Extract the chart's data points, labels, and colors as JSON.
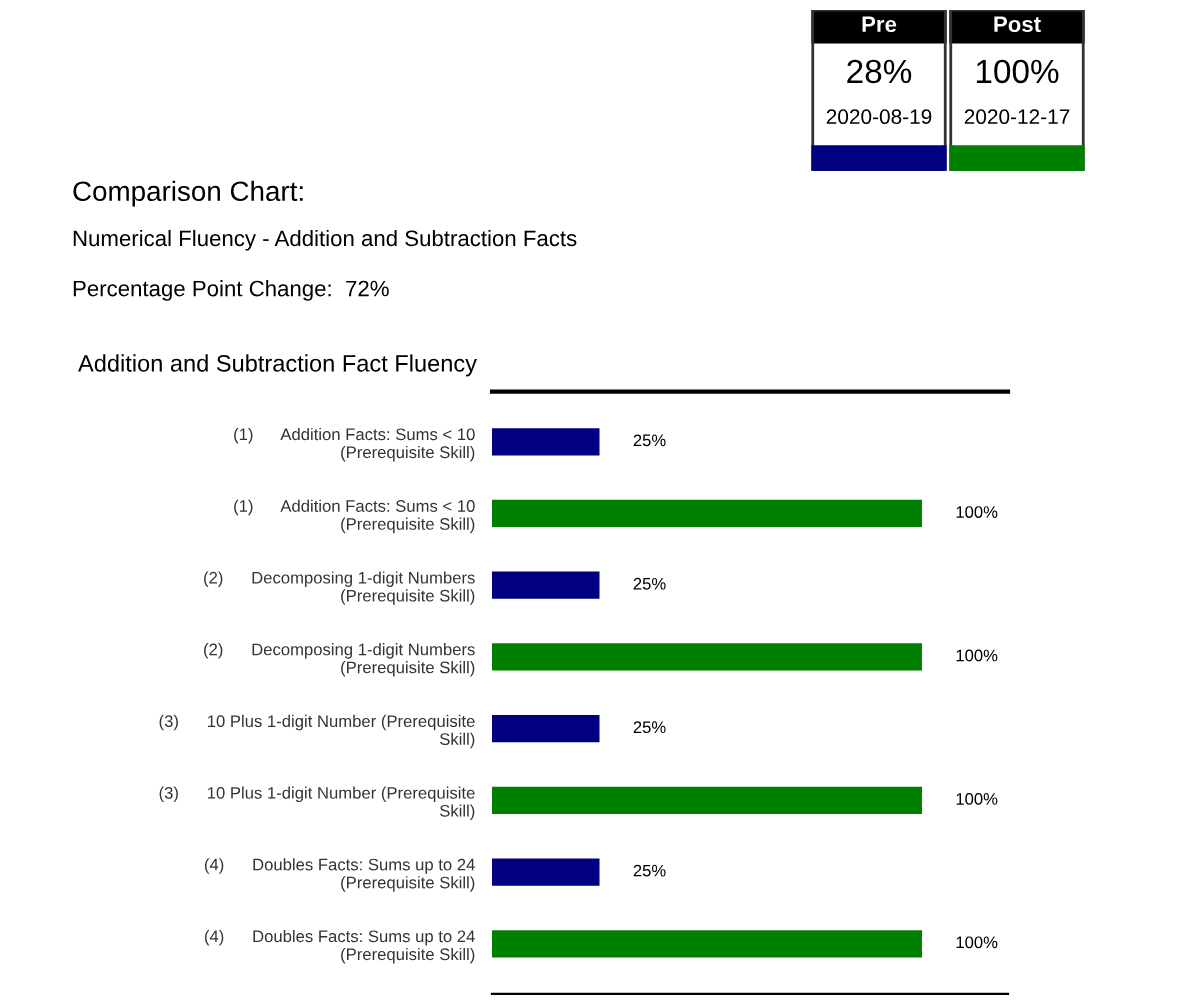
{
  "chart_data": [
    {
      "type": "other",
      "categories": [
        "Pre",
        "Post"
      ],
      "values": [
        28,
        100
      ],
      "value_labels": [
        "28%",
        "100%"
      ],
      "annotations": [
        "2020-08-19",
        "2020-12-17"
      ]
    },
    {
      "type": "bar",
      "orientation": "horizontal",
      "title": "Comparison Chart:",
      "subtitle": "Numerical Fluency - Addition and Subtraction Facts",
      "annotations": [
        "Percentage Point Change:  72%",
        "Addition and Subtraction Fact Fluency"
      ],
      "categories": [
        "(1)      Addition Facts: Sums < 10\n(Prerequisite Skill)",
        "(1)      Addition Facts: Sums < 10\n(Prerequisite Skill)",
        "(2)      Decomposing 1-digit Numbers\n(Prerequisite Skill)",
        "(2)      Decomposing 1-digit Numbers\n(Prerequisite Skill)",
        "(3)      10 Plus 1-digit Number (Prerequisite\nSkill)",
        "(3)      10 Plus 1-digit Number (Prerequisite\nSkill)",
        "(4)      Doubles Facts: Sums up to 24\n(Prerequisite Skill)",
        "(4)      Doubles Facts: Sums up to 24\n(Prerequisite Skill)"
      ],
      "values": [
        25,
        100,
        25,
        100,
        25,
        100,
        25,
        100
      ],
      "colors": [
        "#000080",
        "#008000",
        "#000080",
        "#008000",
        "#000080",
        "#008000",
        "#000080",
        "#008000"
      ],
      "value_labels": [
        "25%",
        "100%",
        "25%",
        "100%",
        "25%",
        "100%",
        "25%",
        "100%"
      ]
    }
  ]
}
